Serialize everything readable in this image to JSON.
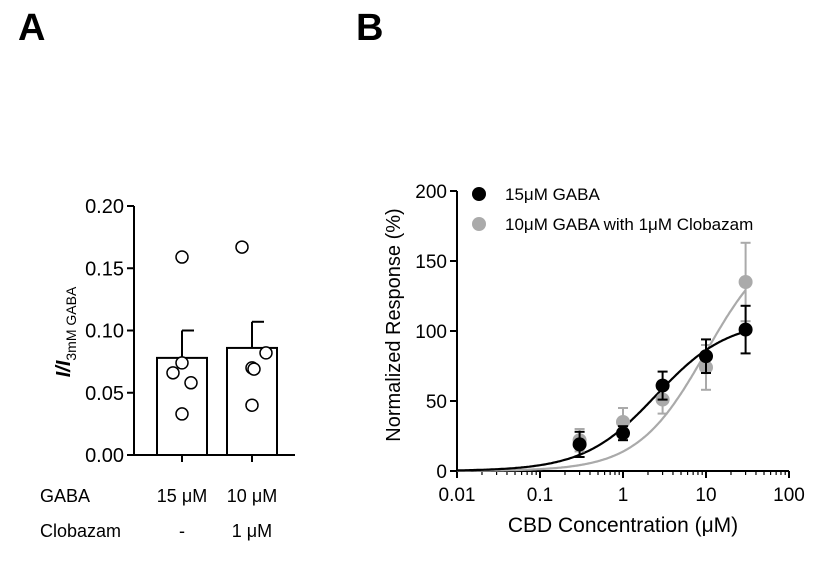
{
  "chart_data": [
    {
      "panel_label": "A",
      "type": "bar",
      "ylabel_main": "I/I",
      "ylabel_sub": "3mM GABA",
      "ylim": [
        0,
        0.2
      ],
      "yticks": [
        "0.00",
        "0.05",
        "0.10",
        "0.15",
        "0.20"
      ],
      "ytick_values": [
        0,
        0.05,
        0.1,
        0.15,
        0.2
      ],
      "row_labels": [
        "GABA",
        "Clobazam"
      ],
      "categories": [
        {
          "gaba": "15 μM",
          "clobazam": "-"
        },
        {
          "gaba": "10 μM",
          "clobazam": "1 μM"
        }
      ],
      "values": [
        0.078,
        0.086
      ],
      "error_upper": [
        0.1,
        0.107
      ],
      "points": [
        [
          0.159,
          0.074,
          0.066,
          0.058,
          0.033
        ],
        [
          0.167,
          0.07,
          0.069,
          0.082,
          0.04
        ]
      ]
    },
    {
      "panel_label": "B",
      "type": "scatter",
      "xlabel": "CBD Concentration (μM)",
      "ylabel": "Normalized Response (%)",
      "xscale": "log",
      "xlim": [
        0.01,
        100
      ],
      "ylim": [
        0,
        200
      ],
      "xticks": [
        "0.01",
        "0.1",
        "1",
        "10",
        "100"
      ],
      "xtick_values": [
        0.01,
        0.1,
        1,
        10,
        100
      ],
      "yticks": [
        "0",
        "50",
        "100",
        "150",
        "200"
      ],
      "ytick_values": [
        0,
        50,
        100,
        150,
        200
      ],
      "legend_position": "top-left",
      "series": [
        {
          "name": "15μM GABA",
          "color": "#000000",
          "x": [
            0.3,
            1,
            3,
            10,
            30
          ],
          "y": [
            19,
            27,
            61,
            82,
            101
          ],
          "err": [
            9,
            5,
            10,
            12,
            17
          ],
          "fit": {
            "top": 108,
            "ec50": 2.5,
            "hill": 1.0
          }
        },
        {
          "name": "10μM GABA with 1μM Clobazam",
          "color": "#aaaaaa",
          "x": [
            0.3,
            1,
            3,
            10,
            30
          ],
          "y": [
            22,
            35,
            51,
            74,
            135
          ],
          "err": [
            8,
            10,
            10,
            16,
            28
          ],
          "fit": {
            "top": 170,
            "ec50": 10,
            "hill": 1.05
          }
        }
      ]
    }
  ]
}
